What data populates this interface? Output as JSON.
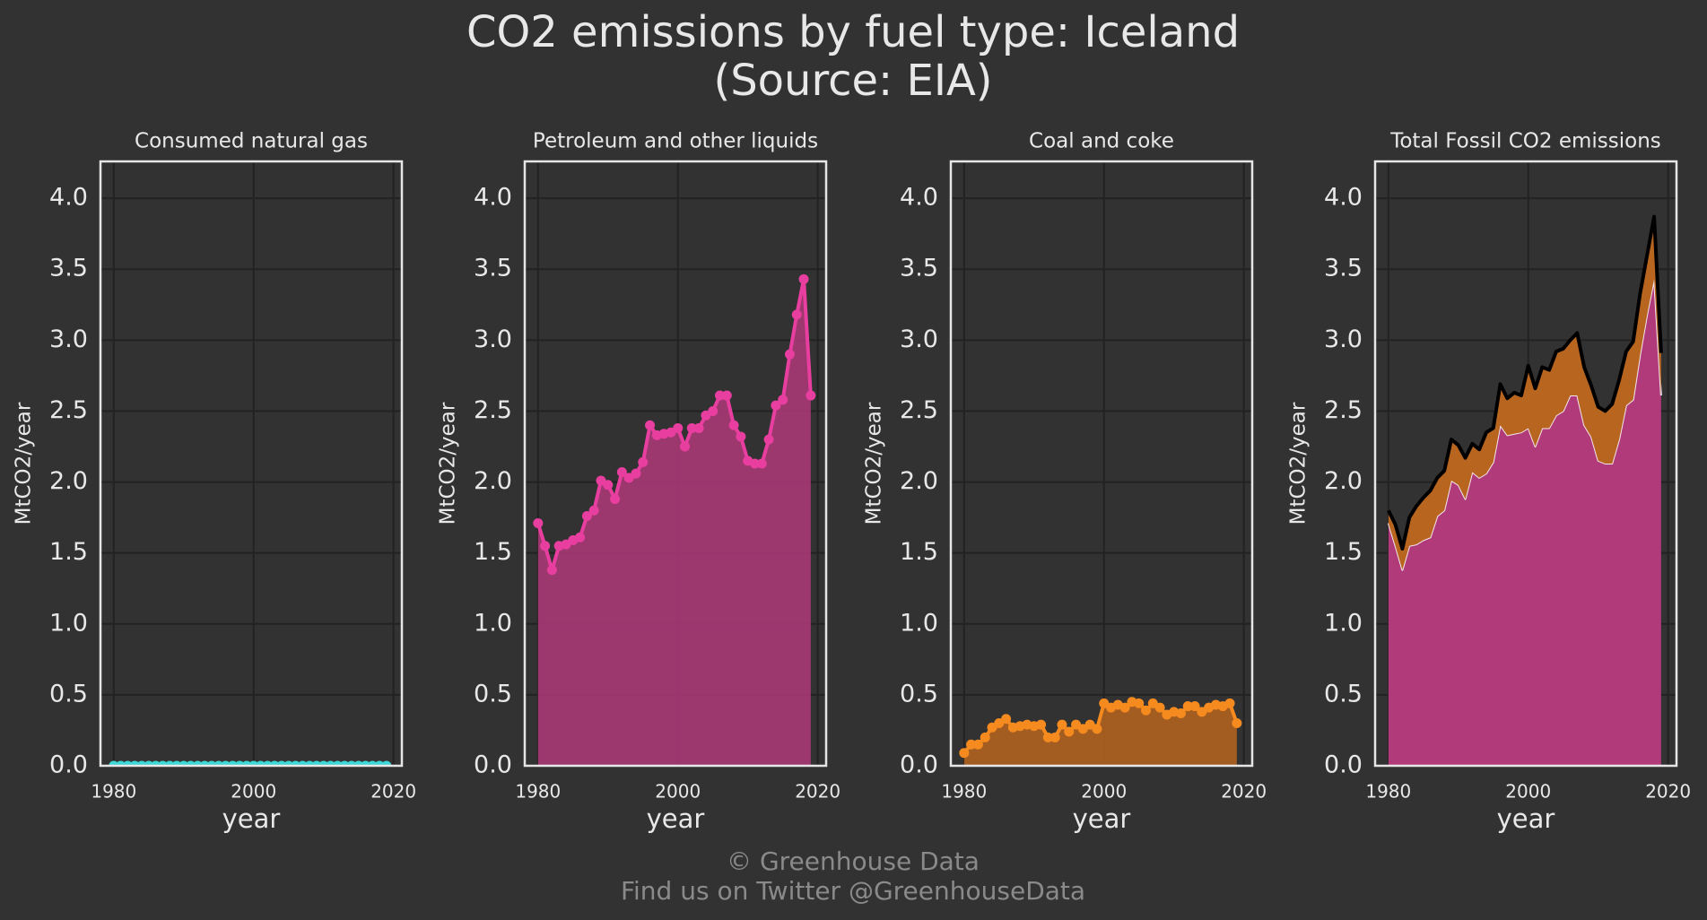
{
  "header": {
    "title_lines": [
      "CO2 emissions by fuel type: Iceland",
      "(Source: EIA)"
    ]
  },
  "footer": {
    "lines": [
      "© Greenhouse Data",
      "Find us on Twitter @GreenhouseData"
    ]
  },
  "chart_data": [
    {
      "type": "area",
      "title": "Consumed natural gas",
      "xlabel": "year",
      "ylabel": "MtCO2/year",
      "grid": true,
      "x": [
        1980,
        1981,
        1982,
        1983,
        1984,
        1985,
        1986,
        1987,
        1988,
        1989,
        1990,
        1991,
        1992,
        1993,
        1994,
        1995,
        1996,
        1997,
        1998,
        1999,
        2000,
        2001,
        2002,
        2003,
        2004,
        2005,
        2006,
        2007,
        2008,
        2009,
        2010,
        2011,
        2012,
        2013,
        2014,
        2015,
        2016,
        2017,
        2018,
        2019
      ],
      "xlim": [
        1978.1,
        2021.2
      ],
      "ylim": [
        0,
        4.26
      ],
      "xticks": [
        1980,
        2000,
        2020
      ],
      "yticks": [
        {
          "value": 0,
          "label": "0.0"
        },
        0.5,
        {
          "value": 1,
          "label": "1.0"
        },
        1.5,
        {
          "value": 2,
          "label": "2.0"
        },
        2.5,
        {
          "value": 3,
          "label": "3.0"
        },
        3.5,
        {
          "value": 4,
          "label": "4.0"
        }
      ],
      "series": [
        {
          "color": "#3fd6d6",
          "fill": "#3fd6d6",
          "markers": true,
          "stack": false,
          "values": [
            0,
            0,
            0,
            0,
            0,
            0,
            0,
            0,
            0,
            0,
            0,
            0,
            0,
            0,
            0,
            0,
            0,
            0,
            0,
            0,
            0,
            0,
            0,
            0,
            0,
            0,
            0,
            0,
            0,
            0,
            0,
            0,
            0,
            0,
            0,
            0,
            0,
            0,
            0,
            0
          ]
        }
      ]
    },
    {
      "type": "area",
      "title": "Petroleum and other liquids",
      "xlabel": "year",
      "ylabel": "MtCO2/year",
      "grid": true,
      "x": [
        1980,
        1981,
        1982,
        1983,
        1984,
        1985,
        1986,
        1987,
        1988,
        1989,
        1990,
        1991,
        1992,
        1993,
        1994,
        1995,
        1996,
        1997,
        1998,
        1999,
        2000,
        2001,
        2002,
        2003,
        2004,
        2005,
        2006,
        2007,
        2008,
        2009,
        2010,
        2011,
        2012,
        2013,
        2014,
        2015,
        2016,
        2017,
        2018,
        2019
      ],
      "xlim": [
        1978.1,
        2021.2
      ],
      "ylim": [
        0,
        4.26
      ],
      "xticks": [
        1980,
        2000,
        2020
      ],
      "yticks": [
        {
          "value": 0,
          "label": "0.0"
        },
        0.5,
        {
          "value": 1,
          "label": "1.0"
        },
        1.5,
        {
          "value": 2,
          "label": "2.0"
        },
        2.5,
        {
          "value": 3,
          "label": "3.0"
        },
        3.5,
        {
          "value": 4,
          "label": "4.0"
        }
      ],
      "series": [
        {
          "color": "#e83e9f",
          "fill": "#b03a7a",
          "markers": true,
          "stack": false,
          "values": [
            1.71,
            1.55,
            1.38,
            1.55,
            1.56,
            1.59,
            1.61,
            1.76,
            1.8,
            2.01,
            1.98,
            1.88,
            2.07,
            2.03,
            2.06,
            2.14,
            2.4,
            2.33,
            2.34,
            2.35,
            2.38,
            2.25,
            2.38,
            2.38,
            2.47,
            2.5,
            2.61,
            2.61,
            2.4,
            2.32,
            2.15,
            2.13,
            2.13,
            2.3,
            2.54,
            2.58,
            2.9,
            3.18,
            3.43,
            2.61
          ]
        }
      ]
    },
    {
      "type": "area",
      "title": "Coal and coke",
      "xlabel": "year",
      "ylabel": "MtCO2/year",
      "grid": true,
      "x": [
        1980,
        1981,
        1982,
        1983,
        1984,
        1985,
        1986,
        1987,
        1988,
        1989,
        1990,
        1991,
        1992,
        1993,
        1994,
        1995,
        1996,
        1997,
        1998,
        1999,
        2000,
        2001,
        2002,
        2003,
        2004,
        2005,
        2006,
        2007,
        2008,
        2009,
        2010,
        2011,
        2012,
        2013,
        2014,
        2015,
        2016,
        2017,
        2018,
        2019
      ],
      "xlim": [
        1978.1,
        2021.2
      ],
      "ylim": [
        0,
        4.26
      ],
      "xticks": [
        1980,
        2000,
        2020
      ],
      "yticks": [
        {
          "value": 0,
          "label": "0.0"
        },
        0.5,
        {
          "value": 1,
          "label": "1.0"
        },
        1.5,
        {
          "value": 2,
          "label": "2.0"
        },
        2.5,
        {
          "value": 3,
          "label": "3.0"
        },
        3.5,
        {
          "value": 4,
          "label": "4.0"
        }
      ],
      "series": [
        {
          "color": "#f58a1f",
          "fill": "#b8651f",
          "markers": true,
          "stack": false,
          "values": [
            0.09,
            0.15,
            0.15,
            0.2,
            0.27,
            0.3,
            0.33,
            0.27,
            0.28,
            0.29,
            0.28,
            0.29,
            0.2,
            0.2,
            0.29,
            0.24,
            0.29,
            0.26,
            0.29,
            0.26,
            0.44,
            0.41,
            0.43,
            0.41,
            0.45,
            0.44,
            0.39,
            0.44,
            0.41,
            0.36,
            0.38,
            0.37,
            0.42,
            0.42,
            0.38,
            0.41,
            0.43,
            0.42,
            0.44,
            0.3
          ]
        }
      ]
    },
    {
      "type": "area",
      "title": "Total Fossil CO2 emissions",
      "xlabel": "year",
      "ylabel": "MtCO2/year",
      "grid": true,
      "x": [
        1980,
        1981,
        1982,
        1983,
        1984,
        1985,
        1986,
        1987,
        1988,
        1989,
        1990,
        1991,
        1992,
        1993,
        1994,
        1995,
        1996,
        1997,
        1998,
        1999,
        2000,
        2001,
        2002,
        2003,
        2004,
        2005,
        2006,
        2007,
        2008,
        2009,
        2010,
        2011,
        2012,
        2013,
        2014,
        2015,
        2016,
        2017,
        2018,
        2019
      ],
      "xlim": [
        1978.1,
        2021.2
      ],
      "ylim": [
        0,
        4.26
      ],
      "xticks": [
        1980,
        2000,
        2020
      ],
      "yticks": [
        {
          "value": 0,
          "label": "0.0"
        },
        0.5,
        {
          "value": 1,
          "label": "1.0"
        },
        1.5,
        {
          "value": 2,
          "label": "2.0"
        },
        2.5,
        {
          "value": 3,
          "label": "3.0"
        },
        3.5,
        {
          "value": 4,
          "label": "4.0"
        }
      ],
      "series": [
        {
          "color": "#f3e6ee",
          "fill": "#b03a7a",
          "markers": false,
          "stack": true,
          "values": [
            1.71,
            1.55,
            1.38,
            1.55,
            1.56,
            1.59,
            1.61,
            1.76,
            1.8,
            2.01,
            1.98,
            1.88,
            2.07,
            2.03,
            2.06,
            2.14,
            2.4,
            2.33,
            2.34,
            2.35,
            2.38,
            2.25,
            2.38,
            2.38,
            2.47,
            2.5,
            2.61,
            2.61,
            2.4,
            2.32,
            2.15,
            2.13,
            2.13,
            2.3,
            2.54,
            2.58,
            2.9,
            3.18,
            3.43,
            2.61
          ]
        },
        {
          "color": "#b8651f",
          "fill": "#b8651f",
          "markers": false,
          "stack": true,
          "values": [
            0.09,
            0.15,
            0.15,
            0.2,
            0.27,
            0.3,
            0.33,
            0.27,
            0.28,
            0.29,
            0.28,
            0.29,
            0.2,
            0.2,
            0.29,
            0.24,
            0.29,
            0.26,
            0.29,
            0.26,
            0.44,
            0.41,
            0.43,
            0.41,
            0.45,
            0.44,
            0.39,
            0.44,
            0.41,
            0.36,
            0.38,
            0.37,
            0.42,
            0.42,
            0.38,
            0.41,
            0.43,
            0.42,
            0.44,
            0.3
          ]
        },
        {
          "color": "#000000",
          "fill": null,
          "markers": false,
          "stack": false,
          "values": [
            1.8,
            1.7,
            1.53,
            1.75,
            1.83,
            1.89,
            1.94,
            2.03,
            2.08,
            2.3,
            2.26,
            2.17,
            2.27,
            2.23,
            2.35,
            2.38,
            2.69,
            2.59,
            2.63,
            2.61,
            2.82,
            2.66,
            2.81,
            2.79,
            2.92,
            2.94,
            3.0,
            3.05,
            2.81,
            2.68,
            2.53,
            2.5,
            2.55,
            2.72,
            2.92,
            2.99,
            3.33,
            3.6,
            3.87,
            2.91
          ]
        }
      ]
    }
  ]
}
